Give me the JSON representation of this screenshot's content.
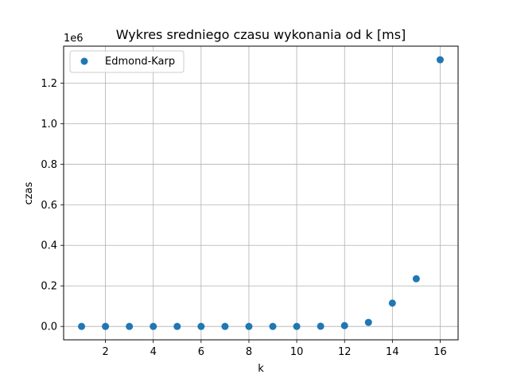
{
  "chart_data": {
    "type": "scatter",
    "title": "Wykres sredniego czasu wykonania od k [ms]",
    "xlabel": "k",
    "ylabel": "czas",
    "y_offset_text": "1e6",
    "xlim": [
      0.25,
      16.75
    ],
    "ylim": [
      -0.066,
      1.382
    ],
    "x_ticks": [
      2,
      4,
      6,
      8,
      10,
      12,
      14,
      16
    ],
    "x_tick_labels": [
      "2",
      "4",
      "6",
      "8",
      "10",
      "12",
      "14",
      "16"
    ],
    "y_ticks": [
      0.0,
      0.2,
      0.4,
      0.6,
      0.8,
      1.0,
      1.2
    ],
    "y_tick_labels": [
      "0.0",
      "0.2",
      "0.4",
      "0.6",
      "0.8",
      "1.0",
      "1.2"
    ],
    "grid": true,
    "legend_position": "top-left",
    "series": [
      {
        "name": "Edmond-Karp",
        "color": "#1f77b4",
        "x": [
          1,
          2,
          3,
          4,
          5,
          6,
          7,
          8,
          9,
          10,
          11,
          12,
          13,
          14,
          15,
          16
        ],
        "y": [
          0.0,
          0.0,
          0.0,
          0.0,
          0.0,
          0.0,
          0.0,
          0.0,
          0.0,
          0.0,
          0.001,
          0.004,
          0.02,
          0.115,
          0.235,
          1.315
        ]
      }
    ]
  }
}
